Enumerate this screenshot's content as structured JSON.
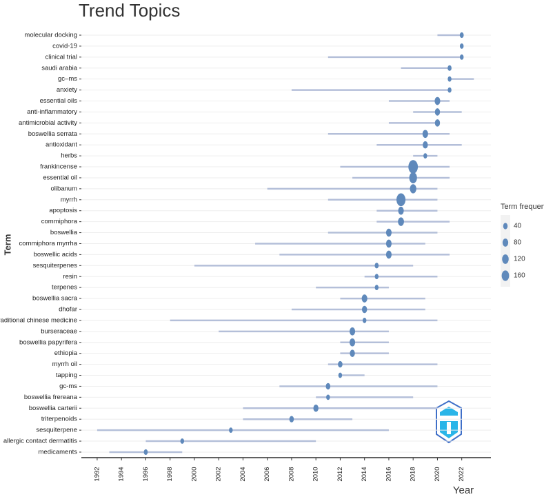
{
  "chart_data": {
    "type": "trend-topics",
    "title": "Trend Topics",
    "ylabel": "Term",
    "xlabel": "Year",
    "categories": [
      "molecular docking",
      "covid-19",
      "clinical trial",
      "saudi arabia",
      "gc–ms",
      "anxiety",
      "essential oils",
      "anti-inflammatory",
      "antimicrobial activity",
      "boswellia serrata",
      "antioxidant",
      "herbs",
      "frankincense",
      "essential oil",
      "olibanum",
      "myrrh",
      "apoptosis",
      "commiphora",
      "boswellia",
      "commiphora myrrha",
      "boswellic acids",
      "sesquiterpenes",
      "resin",
      "terpenes",
      "boswellia sacra",
      "dhofar",
      "traditional chinese medicine",
      "burseraceae",
      "boswellia papyrifera",
      "ethiopia",
      "myrrh oil",
      "tapping",
      "gc-ms",
      "boswellia frereana",
      "boswellia carterii",
      "triterpenoids",
      "sesquiterpene",
      "allergic contact dermatitis",
      "medicaments"
    ],
    "start": [
      2020,
      2022,
      2011,
      2017,
      2021,
      2008,
      2016,
      2018,
      2016,
      2011,
      2015,
      2018,
      2012,
      2013,
      2006,
      2011,
      2015,
      2015,
      2011,
      2005,
      2007,
      2000,
      2014,
      2010,
      2012,
      2008,
      1998,
      2002,
      2012,
      2012,
      2011,
      2012,
      2007,
      2010,
      2004,
      2004,
      1992,
      1996,
      1993
    ],
    "median": [
      2022,
      2022,
      2022,
      2021,
      2021,
      2021,
      2020,
      2020,
      2020,
      2019,
      2019,
      2019,
      2018,
      2018,
      2018,
      2017,
      2017,
      2017,
      2016,
      2016,
      2016,
      2015,
      2015,
      2015,
      2014,
      2014,
      2014,
      2013,
      2013,
      2013,
      2012,
      2012,
      2011,
      2011,
      2010,
      2008,
      2003,
      1999,
      1996
    ],
    "end": [
      2022,
      2022,
      2022,
      2021,
      2023,
      2021,
      2021,
      2022,
      2020,
      2021,
      2022,
      2020,
      2021,
      2021,
      2020,
      2020,
      2020,
      2021,
      2020,
      2019,
      2021,
      2018,
      2020,
      2016,
      2019,
      2019,
      2020,
      2016,
      2016,
      2016,
      2020,
      2014,
      2020,
      2018,
      2020,
      2013,
      2016,
      2010,
      1999
    ],
    "frequency": [
      12,
      10,
      10,
      12,
      10,
      10,
      40,
      30,
      30,
      40,
      30,
      10,
      170,
      100,
      60,
      150,
      40,
      50,
      40,
      40,
      40,
      12,
      10,
      10,
      40,
      30,
      10,
      40,
      40,
      30,
      20,
      10,
      20,
      10,
      30,
      20,
      10,
      10,
      12
    ],
    "xlim": [
      1990.7,
      2024.4
    ],
    "xticks": [
      1992,
      1994,
      1996,
      1998,
      2000,
      2002,
      2004,
      2006,
      2008,
      2010,
      2012,
      2014,
      2016,
      2018,
      2020,
      2022
    ],
    "line_color": "#b4bfd9",
    "dot_color": "#5f89bb",
    "size_legend": {
      "title": "Term frequency",
      "values": [
        40,
        80,
        120,
        160
      ]
    }
  }
}
